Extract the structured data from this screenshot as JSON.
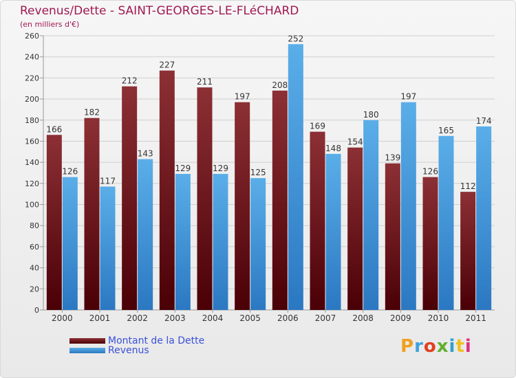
{
  "chart_data": {
    "type": "bar",
    "title": "Revenus/Dette - SAINT-GEORGES-LE-FLéCHARD",
    "subtitle": "(en milliers d'€)",
    "categories": [
      "2000",
      "2001",
      "2002",
      "2003",
      "2004",
      "2005",
      "2006",
      "2007",
      "2008",
      "2009",
      "2010",
      "2011"
    ],
    "series": [
      {
        "name": "Montant de la Dette",
        "color": "#7a1c22",
        "values": [
          166,
          182,
          212,
          227,
          211,
          197,
          208,
          169,
          154,
          139,
          126,
          112
        ]
      },
      {
        "name": "Revenus",
        "color": "#4a9ee2",
        "values": [
          126,
          117,
          143,
          129,
          129,
          125,
          252,
          148,
          180,
          197,
          165,
          174
        ]
      }
    ],
    "ylim": [
      0,
      260
    ],
    "yticks": [
      0,
      20,
      40,
      60,
      80,
      100,
      120,
      140,
      160,
      180,
      200,
      220,
      240,
      260
    ],
    "grid": true,
    "legend_position": "bottom-left",
    "xlabel": "",
    "ylabel": ""
  },
  "logo": {
    "text": "Proxiti"
  }
}
